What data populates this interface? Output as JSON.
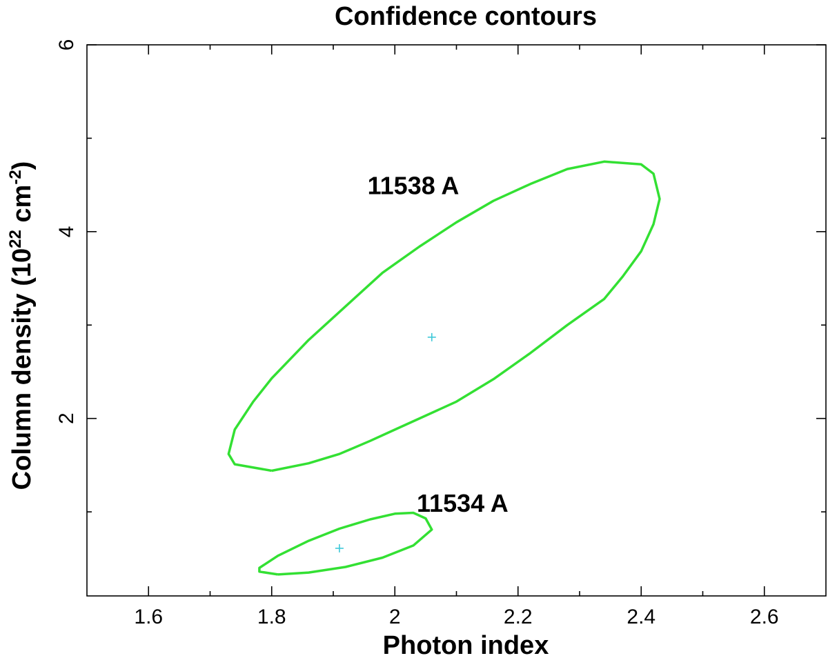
{
  "chart_data": {
    "type": "scatter",
    "title": "Confidence contours",
    "xlabel": "Photon index",
    "ylabel": {
      "prefix": "Column density (10",
      "sup1": "22",
      "middle": " cm",
      "sup2": "-2",
      "suffix": ")"
    },
    "xlim": [
      1.5,
      2.7
    ],
    "ylim": [
      0.1,
      6
    ],
    "x_ticks_major": [
      1.6,
      1.8,
      2.0,
      2.2,
      2.4,
      2.6
    ],
    "x_tick_labels": [
      "1.6",
      "1.8",
      "2",
      "2.2",
      "2.4",
      "2.6"
    ],
    "x_ticks_minor": [
      1.7,
      1.9,
      2.1,
      2.3,
      2.5
    ],
    "y_ticks_major": [
      2,
      4,
      6
    ],
    "y_tick_labels": [
      "2",
      "4",
      "6"
    ],
    "y_ticks_minor": [
      1,
      3,
      5
    ],
    "grid": false,
    "colors": {
      "contour": "#33e033",
      "best_fit": "#3cc8d8"
    },
    "series": [
      {
        "name": "11538 A",
        "best_fit": [
          2.06,
          2.87
        ],
        "label_position": [
          2.03,
          4.4
        ],
        "contour": [
          [
            1.8,
            1.44
          ],
          [
            1.86,
            1.52
          ],
          [
            1.91,
            1.62
          ],
          [
            1.96,
            1.76
          ],
          [
            2.0,
            1.88
          ],
          [
            2.05,
            2.03
          ],
          [
            2.1,
            2.18
          ],
          [
            2.16,
            2.42
          ],
          [
            2.22,
            2.7
          ],
          [
            2.28,
            3.0
          ],
          [
            2.34,
            3.28
          ],
          [
            2.37,
            3.52
          ],
          [
            2.4,
            3.79
          ],
          [
            2.42,
            4.08
          ],
          [
            2.43,
            4.35
          ],
          [
            2.42,
            4.62
          ],
          [
            2.4,
            4.72
          ],
          [
            2.34,
            4.75
          ],
          [
            2.28,
            4.67
          ],
          [
            2.22,
            4.51
          ],
          [
            2.16,
            4.33
          ],
          [
            2.1,
            4.1
          ],
          [
            2.04,
            3.84
          ],
          [
            1.98,
            3.56
          ],
          [
            1.92,
            3.2
          ],
          [
            1.86,
            2.84
          ],
          [
            1.8,
            2.43
          ],
          [
            1.77,
            2.18
          ],
          [
            1.74,
            1.88
          ],
          [
            1.73,
            1.62
          ],
          [
            1.74,
            1.51
          ],
          [
            1.8,
            1.44
          ]
        ]
      },
      {
        "name": "11534 A",
        "best_fit": [
          1.91,
          0.61
        ],
        "label_position": [
          2.11,
          1.0
        ],
        "contour": [
          [
            1.81,
            0.33
          ],
          [
            1.86,
            0.35
          ],
          [
            1.92,
            0.41
          ],
          [
            1.98,
            0.51
          ],
          [
            2.03,
            0.64
          ],
          [
            2.06,
            0.81
          ],
          [
            2.05,
            0.93
          ],
          [
            2.03,
            0.99
          ],
          [
            2.0,
            0.98
          ],
          [
            1.96,
            0.92
          ],
          [
            1.91,
            0.82
          ],
          [
            1.86,
            0.69
          ],
          [
            1.81,
            0.53
          ],
          [
            1.78,
            0.4
          ],
          [
            1.78,
            0.36
          ],
          [
            1.81,
            0.33
          ]
        ]
      }
    ]
  }
}
